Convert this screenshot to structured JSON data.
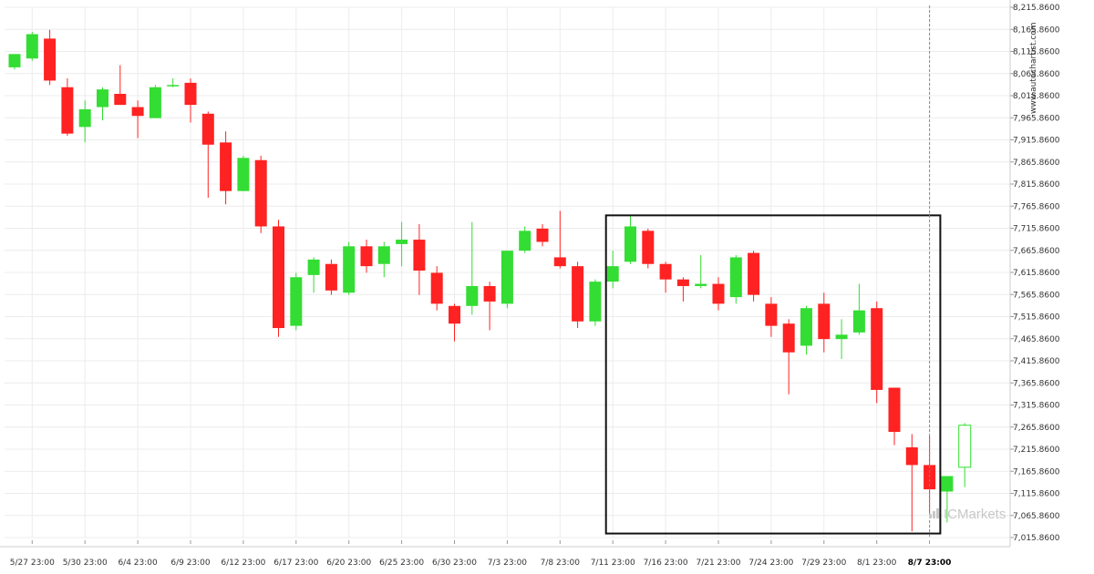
{
  "chart_data": {
    "type": "candlestick",
    "y_axis": {
      "min": 7015.86,
      "max": 8215.86,
      "step": 50,
      "tick_labels": [
        "8,215.8600",
        "8,165.8600",
        "8,115.8600",
        "8,065.8600",
        "8,015.8600",
        "7,965.8600",
        "7,915.8600",
        "7,865.8600",
        "7,815.8600",
        "7,765.8600",
        "7,715.8600",
        "7,665.8600",
        "7,615.8600",
        "7,565.8600",
        "7,515.8600",
        "7,465.8600",
        "7,415.8600",
        "7,365.8600",
        "7,315.8600",
        "7,265.8600",
        "7,215.8600",
        "7,165.8600",
        "7,115.8600",
        "7,065.8600",
        "7,015.8600"
      ]
    },
    "x_tick_labels": [
      {
        "label": "5/27 23:00",
        "at": 1,
        "bold": false
      },
      {
        "label": "5/30 23:00",
        "at": 4,
        "bold": false
      },
      {
        "label": "6/4 23:00",
        "at": 7,
        "bold": false
      },
      {
        "label": "6/9 23:00",
        "at": 10,
        "bold": false
      },
      {
        "label": "6/12 23:00",
        "at": 13,
        "bold": false
      },
      {
        "label": "6/17 23:00",
        "at": 16,
        "bold": false
      },
      {
        "label": "6/20 23:00",
        "at": 19,
        "bold": false
      },
      {
        "label": "6/25 23:00",
        "at": 22,
        "bold": false
      },
      {
        "label": "6/30 23:00",
        "at": 25,
        "bold": false
      },
      {
        "label": "7/3 23:00",
        "at": 28,
        "bold": false
      },
      {
        "label": "7/8 23:00",
        "at": 31,
        "bold": false
      },
      {
        "label": "7/11 23:00",
        "at": 34,
        "bold": false
      },
      {
        "label": "7/16 23:00",
        "at": 37,
        "bold": false
      },
      {
        "label": "7/21 23:00",
        "at": 40,
        "bold": false
      },
      {
        "label": "7/24 23:00",
        "at": 43,
        "bold": false
      },
      {
        "label": "7/29 23:00",
        "at": 46,
        "bold": false
      },
      {
        "label": "8/1 23:00",
        "at": 49,
        "bold": false
      },
      {
        "label": "8/7 23:00",
        "at": 52,
        "bold": true
      }
    ],
    "candles": [
      {
        "o": 8080,
        "h": 8110,
        "l": 8075,
        "c": 8110
      },
      {
        "o": 8100,
        "h": 8160,
        "l": 8095,
        "c": 8155
      },
      {
        "o": 8145,
        "h": 8165,
        "l": 8040,
        "c": 8050
      },
      {
        "o": 8035,
        "h": 8055,
        "l": 7925,
        "c": 7930
      },
      {
        "o": 7945,
        "h": 8005,
        "l": 7910,
        "c": 7985
      },
      {
        "o": 7990,
        "h": 8035,
        "l": 7960,
        "c": 8030
      },
      {
        "o": 8020,
        "h": 8085,
        "l": 7995,
        "c": 7995
      },
      {
        "o": 7990,
        "h": 8005,
        "l": 7920,
        "c": 7970
      },
      {
        "o": 7965,
        "h": 8040,
        "l": 7965,
        "c": 8035
      },
      {
        "o": 8040,
        "h": 8055,
        "l": 8035,
        "c": 8040
      },
      {
        "o": 8045,
        "h": 8055,
        "l": 7955,
        "c": 7995
      },
      {
        "o": 7975,
        "h": 7980,
        "l": 7785,
        "c": 7905
      },
      {
        "o": 7910,
        "h": 7935,
        "l": 7770,
        "c": 7800
      },
      {
        "o": 7800,
        "h": 7880,
        "l": 7800,
        "c": 7875
      },
      {
        "o": 7870,
        "h": 7880,
        "l": 7705,
        "c": 7720
      },
      {
        "o": 7720,
        "h": 7735,
        "l": 7470,
        "c": 7490
      },
      {
        "o": 7495,
        "h": 7615,
        "l": 7485,
        "c": 7605
      },
      {
        "o": 7610,
        "h": 7650,
        "l": 7570,
        "c": 7645
      },
      {
        "o": 7635,
        "h": 7645,
        "l": 7565,
        "c": 7575
      },
      {
        "o": 7570,
        "h": 7685,
        "l": 7565,
        "c": 7675
      },
      {
        "o": 7675,
        "h": 7690,
        "l": 7615,
        "c": 7630
      },
      {
        "o": 7635,
        "h": 7685,
        "l": 7605,
        "c": 7675
      },
      {
        "o": 7680,
        "h": 7730,
        "l": 7630,
        "c": 7690
      },
      {
        "o": 7690,
        "h": 7725,
        "l": 7565,
        "c": 7620
      },
      {
        "o": 7615,
        "h": 7630,
        "l": 7530,
        "c": 7545
      },
      {
        "o": 7540,
        "h": 7545,
        "l": 7460,
        "c": 7500
      },
      {
        "o": 7540,
        "h": 7730,
        "l": 7520,
        "c": 7585
      },
      {
        "o": 7585,
        "h": 7595,
        "l": 7485,
        "c": 7550
      },
      {
        "o": 7545,
        "h": 7665,
        "l": 7535,
        "c": 7665
      },
      {
        "o": 7665,
        "h": 7720,
        "l": 7660,
        "c": 7710
      },
      {
        "o": 7715,
        "h": 7725,
        "l": 7675,
        "c": 7685
      },
      {
        "o": 7650,
        "h": 7755,
        "l": 7625,
        "c": 7630
      },
      {
        "o": 7630,
        "h": 7640,
        "l": 7490,
        "c": 7505
      },
      {
        "o": 7505,
        "h": 7600,
        "l": 7495,
        "c": 7595
      },
      {
        "o": 7595,
        "h": 7665,
        "l": 7580,
        "c": 7630
      },
      {
        "o": 7640,
        "h": 7745,
        "l": 7635,
        "c": 7720
      },
      {
        "o": 7710,
        "h": 7715,
        "l": 7625,
        "c": 7635
      },
      {
        "o": 7635,
        "h": 7640,
        "l": 7570,
        "c": 7600
      },
      {
        "o": 7600,
        "h": 7605,
        "l": 7550,
        "c": 7585
      },
      {
        "o": 7585,
        "h": 7655,
        "l": 7580,
        "c": 7590
      },
      {
        "o": 7590,
        "h": 7605,
        "l": 7530,
        "c": 7545
      },
      {
        "o": 7560,
        "h": 7655,
        "l": 7545,
        "c": 7650
      },
      {
        "o": 7660,
        "h": 7665,
        "l": 7550,
        "c": 7565
      },
      {
        "o": 7545,
        "h": 7560,
        "l": 7470,
        "c": 7495
      },
      {
        "o": 7500,
        "h": 7510,
        "l": 7340,
        "c": 7435
      },
      {
        "o": 7450,
        "h": 7540,
        "l": 7430,
        "c": 7535
      },
      {
        "o": 7545,
        "h": 7570,
        "l": 7435,
        "c": 7465
      },
      {
        "o": 7465,
        "h": 7510,
        "l": 7420,
        "c": 7475
      },
      {
        "o": 7480,
        "h": 7590,
        "l": 7475,
        "c": 7530
      },
      {
        "o": 7535,
        "h": 7550,
        "l": 7320,
        "c": 7350
      },
      {
        "o": 7355,
        "h": 7355,
        "l": 7225,
        "c": 7255
      },
      {
        "o": 7220,
        "h": 7250,
        "l": 7030,
        "c": 7180
      },
      {
        "o": 7180,
        "h": 7245,
        "l": 7070,
        "c": 7125
      },
      {
        "o": 7120,
        "h": 7150,
        "l": 7050,
        "c": 7155
      },
      {
        "o": 7175,
        "h": 7275,
        "l": 7130,
        "c": 7270
      }
    ],
    "highlight_box": {
      "x_from": 34,
      "x_to": 53,
      "y_from": 7745,
      "y_to": 7025
    },
    "cursor_at_candle": 52,
    "last_candle_style": "hollow-green",
    "colors": {
      "up": "#33dd33",
      "down": "#ff2222",
      "grid": "#ececec",
      "box": "#111111",
      "cursor": "#888888"
    },
    "watermark": "www.autochartist.com",
    "brand": "ICMarkets"
  }
}
